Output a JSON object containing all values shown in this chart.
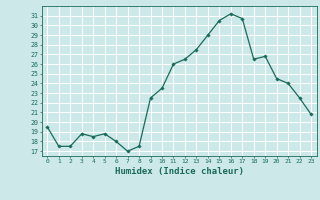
{
  "x": [
    0,
    1,
    2,
    3,
    4,
    5,
    6,
    7,
    8,
    9,
    10,
    11,
    12,
    13,
    14,
    15,
    16,
    17,
    18,
    19,
    20,
    21,
    22,
    23
  ],
  "y": [
    19.5,
    17.5,
    17.5,
    18.8,
    18.5,
    18.8,
    18.0,
    17.0,
    17.5,
    22.5,
    23.5,
    26.0,
    26.5,
    27.5,
    29.0,
    30.5,
    31.2,
    30.7,
    26.5,
    26.8,
    24.5,
    24.0,
    22.5,
    20.8
  ],
  "line_color": "#1a6b5a",
  "marker": "D",
  "marker_size": 1.8,
  "bg_color": "#cce8e8",
  "grid_color": "#ffffff",
  "axis_color": "#1a6b5a",
  "tick_color": "#1a6b5a",
  "xlabel": "Humidex (Indice chaleur)",
  "xlabel_fontsize": 6.5,
  "ylim": [
    16.5,
    32.0
  ],
  "xlim": [
    -0.5,
    23.5
  ],
  "yticks": [
    17,
    18,
    19,
    20,
    21,
    22,
    23,
    24,
    25,
    26,
    27,
    28,
    29,
    30,
    31
  ],
  "xticks": [
    0,
    1,
    2,
    3,
    4,
    5,
    6,
    7,
    8,
    9,
    10,
    11,
    12,
    13,
    14,
    15,
    16,
    17,
    18,
    19,
    20,
    21,
    22,
    23
  ]
}
